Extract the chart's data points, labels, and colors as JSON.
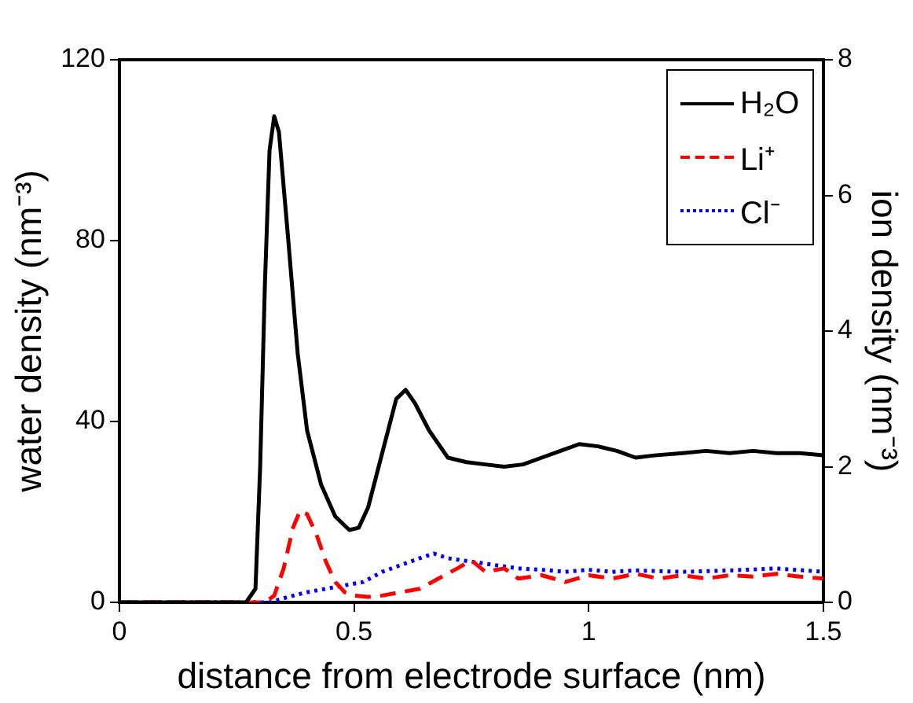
{
  "chart_data": {
    "type": "line",
    "xlabel": "distance from electrode surface (nm)",
    "ylabel": "water density (nm⁻³)",
    "y2label": "ion density (nm⁻³)",
    "xlim": [
      0,
      1.5
    ],
    "xticks": [
      0,
      0.5,
      1,
      1.5
    ],
    "ylim": [
      0,
      120
    ],
    "yticks": [
      0,
      40,
      80,
      120
    ],
    "y2lim": [
      0,
      8
    ],
    "y2ticks": [
      0,
      2,
      4,
      6,
      8
    ],
    "grid": false,
    "legend": "top right",
    "marker": "none",
    "series": [
      {
        "name": "H₂O",
        "color": "#000000",
        "line_style": "solid",
        "x": [
          0,
          0.27,
          0.29,
          0.3,
          0.31,
          0.32,
          0.33,
          0.34,
          0.36,
          0.38,
          0.4,
          0.43,
          0.46,
          0.49,
          0.51,
          0.53,
          0.56,
          0.59,
          0.61,
          0.63,
          0.66,
          0.7,
          0.74,
          0.78,
          0.82,
          0.86,
          0.9,
          0.94,
          0.98,
          1.02,
          1.06,
          1.1,
          1.14,
          1.2,
          1.25,
          1.3,
          1.35,
          1.4,
          1.45,
          1.5
        ],
        "values": [
          0,
          0,
          3,
          30,
          70,
          100,
          107.5,
          104,
          80,
          55,
          38,
          26,
          19,
          16,
          16.5,
          21,
          33,
          45,
          47,
          44,
          38,
          32,
          31,
          30.5,
          30,
          30.5,
          32,
          33.5,
          35,
          34.5,
          33.5,
          32,
          32.5,
          33,
          33.5,
          33,
          33.5,
          33,
          33,
          32.5
        ]
      },
      {
        "name": "Li⁺",
        "color": "#ff0000",
        "line_style": "dashed",
        "axis": "y2",
        "x": [
          0,
          0.31,
          0.33,
          0.35,
          0.37,
          0.385,
          0.4,
          0.42,
          0.44,
          0.46,
          0.48,
          0.5,
          0.53,
          0.56,
          0.6,
          0.64,
          0.68,
          0.72,
          0.75,
          0.78,
          0.82,
          0.85,
          0.9,
          0.95,
          1.0,
          1.05,
          1.1,
          1.15,
          1.2,
          1.25,
          1.3,
          1.35,
          1.4,
          1.45,
          1.5
        ],
        "values": [
          0,
          0,
          0.1,
          0.5,
          1.1,
          1.35,
          1.3,
          1.0,
          0.6,
          0.3,
          0.15,
          0.1,
          0.08,
          0.1,
          0.15,
          0.2,
          0.35,
          0.5,
          0.62,
          0.45,
          0.5,
          0.35,
          0.4,
          0.3,
          0.4,
          0.35,
          0.42,
          0.35,
          0.4,
          0.35,
          0.4,
          0.38,
          0.42,
          0.38,
          0.35
        ]
      },
      {
        "name": "Cl⁻",
        "color": "#0000ff",
        "line_style": "dotted",
        "axis": "y2",
        "x": [
          0,
          0.32,
          0.36,
          0.4,
          0.44,
          0.48,
          0.52,
          0.56,
          0.6,
          0.64,
          0.67,
          0.7,
          0.75,
          0.8,
          0.85,
          0.9,
          0.95,
          1.0,
          1.05,
          1.1,
          1.2,
          1.3,
          1.4,
          1.5
        ],
        "values": [
          0,
          0,
          0.08,
          0.15,
          0.2,
          0.25,
          0.3,
          0.45,
          0.55,
          0.65,
          0.72,
          0.65,
          0.6,
          0.55,
          0.5,
          0.48,
          0.45,
          0.48,
          0.45,
          0.47,
          0.45,
          0.47,
          0.5,
          0.45
        ]
      }
    ]
  }
}
